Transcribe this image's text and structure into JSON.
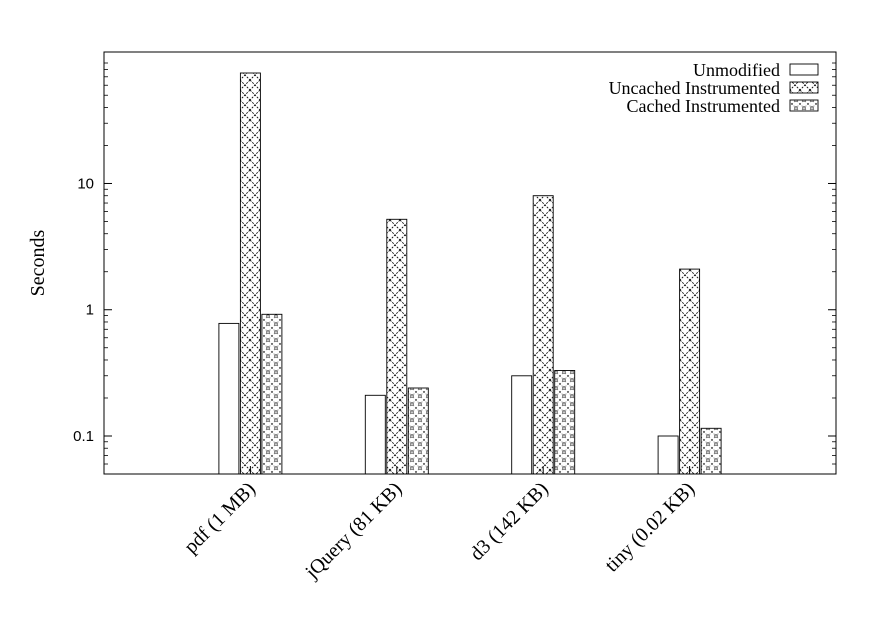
{
  "chart_data": {
    "type": "bar",
    "title": "",
    "xlabel": "",
    "ylabel": "Seconds",
    "yscale": "log",
    "ylim": [
      0.05,
      110
    ],
    "yticks": [
      {
        "value": 0.1,
        "label": "0.1"
      },
      {
        "value": 1,
        "label": "1"
      },
      {
        "value": 10,
        "label": "10"
      }
    ],
    "categories": [
      "pdf (1 MB)",
      "jQuery (81 KB)",
      "d3 (142 KB)",
      "tiny (0.02 KB)"
    ],
    "series": [
      {
        "name": "Unmodified",
        "pattern": "plain",
        "values": [
          0.78,
          0.21,
          0.3,
          0.1
        ]
      },
      {
        "name": "Uncached Instrumented",
        "pattern": "crosshatch",
        "values": [
          75,
          5.2,
          8.0,
          2.1
        ]
      },
      {
        "name": "Cached Instrumented",
        "pattern": "dots",
        "values": [
          0.92,
          0.24,
          0.33,
          0.115
        ]
      }
    ],
    "legend_position": "top-right",
    "grid": false
  }
}
